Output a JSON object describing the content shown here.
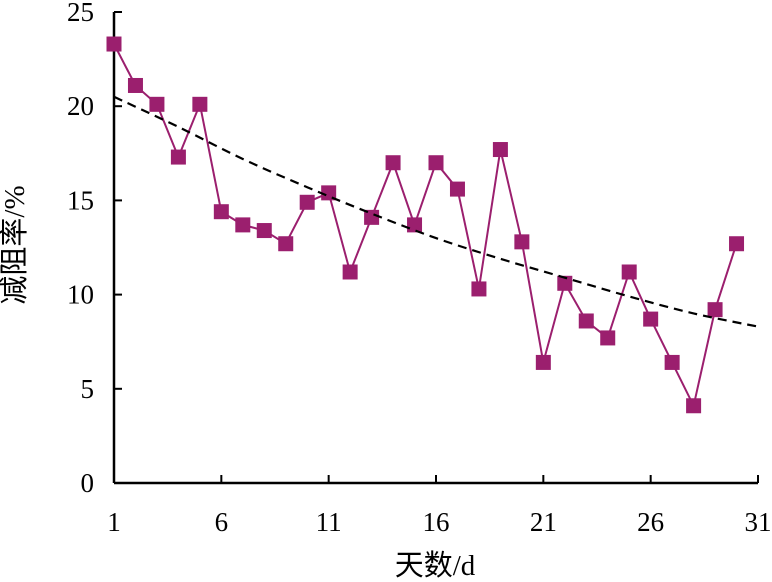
{
  "chart_data": {
    "type": "line",
    "xlabel": "天数/d",
    "ylabel": "减阻率/%",
    "xlim": [
      1,
      31
    ],
    "ylim": [
      0,
      25
    ],
    "xticks": [
      1,
      6,
      11,
      16,
      21,
      26,
      31
    ],
    "yticks": [
      0,
      5,
      10,
      15,
      20,
      25
    ],
    "grid": false,
    "series": [
      {
        "marker": "square",
        "color": "#9b1f6e",
        "x": [
          1,
          2,
          3,
          4,
          5,
          6,
          7,
          8,
          9,
          10,
          11,
          12,
          13,
          14,
          15,
          16,
          17,
          18,
          19,
          20,
          21,
          22,
          23,
          24,
          25,
          26,
          27,
          28,
          29,
          30
        ],
        "y": [
          23.3,
          21.1,
          20.1,
          17.3,
          20.1,
          14.4,
          13.7,
          13.4,
          12.7,
          14.9,
          15.4,
          11.2,
          14.1,
          17.0,
          13.7,
          17.0,
          15.6,
          10.3,
          17.7,
          12.8,
          6.4,
          10.6,
          8.6,
          7.7,
          11.2,
          8.7,
          6.4,
          4.1,
          9.2,
          12.7
        ]
      },
      {
        "style": "dashed",
        "color": "#000000",
        "x": [
          1,
          4,
          7,
          10,
          13,
          16,
          19,
          22,
          25,
          28,
          31
        ],
        "y": [
          20.5,
          18.9,
          17.2,
          15.7,
          14.3,
          13.0,
          11.9,
          10.9,
          9.9,
          9.0,
          8.3
        ]
      }
    ]
  }
}
